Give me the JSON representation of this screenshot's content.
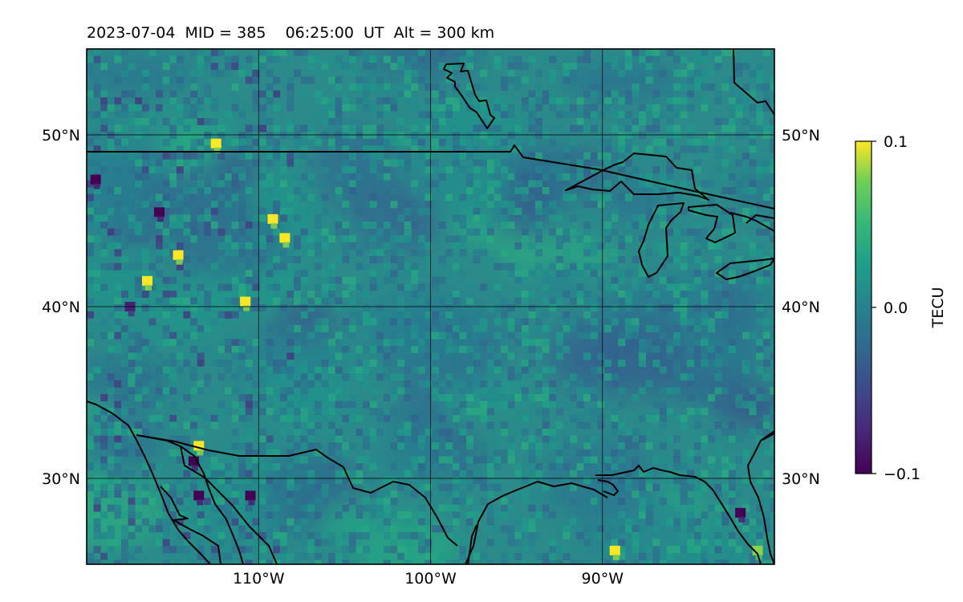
{
  "title": {
    "date": "2023-07-04",
    "mid": "MID = 385",
    "time": "06:25:00  UT",
    "alt": "Alt = 300 km"
  },
  "map": {
    "lon_range": [
      -120,
      -80
    ],
    "lat_range": [
      25,
      55
    ],
    "lon_ticks": [
      {
        "value": -110,
        "label": "110°W"
      },
      {
        "value": -100,
        "label": "100°W"
      },
      {
        "value": -90,
        "label": "90°W"
      }
    ],
    "lat_ticks": [
      {
        "value": 50,
        "label": "50°N"
      },
      {
        "value": 40,
        "label": "40°N"
      },
      {
        "value": 30,
        "label": "30°N"
      }
    ],
    "gridlines": true,
    "coastlines_and_borders": true
  },
  "colorbar": {
    "label": "TECU",
    "colormap": "viridis",
    "min": -0.1,
    "max": 0.1,
    "ticks": [
      {
        "value": 0.1,
        "label": "0.1"
      },
      {
        "value": 0.0,
        "label": "0.0"
      },
      {
        "value": -0.1,
        "label": "−0.1"
      }
    ]
  },
  "chart_data": {
    "type": "heatmap",
    "title": "2023-07-04  MID = 385    06:25:00  UT  Alt = 300 km",
    "x_axis": "longitude",
    "y_axis": "latitude",
    "xlim": [
      -120,
      -80
    ],
    "ylim": [
      25,
      55
    ],
    "value_range": [
      -0.1,
      0.1
    ],
    "units": "TECU",
    "dominant_value": 0.0,
    "notable_regions": [
      {
        "lon": -114.7,
        "lat": 43.0,
        "value": 0.1
      },
      {
        "lon": -116.5,
        "lat": 41.5,
        "value": 0.1
      },
      {
        "lon": -110.8,
        "lat": 40.3,
        "value": 0.1
      },
      {
        "lon": -108.5,
        "lat": 44.0,
        "value": 0.1
      },
      {
        "lon": -109.2,
        "lat": 45.1,
        "value": 0.1
      },
      {
        "lon": -112.5,
        "lat": 49.5,
        "value": 0.1
      },
      {
        "lon": -113.5,
        "lat": 31.9,
        "value": 0.1
      },
      {
        "lon": -89.3,
        "lat": 25.8,
        "value": 0.1
      },
      {
        "lon": -81.0,
        "lat": 25.8,
        "value": 0.08
      },
      {
        "lon": -119.5,
        "lat": 47.4,
        "value": -0.1
      },
      {
        "lon": -115.8,
        "lat": 45.5,
        "value": -0.1
      },
      {
        "lon": -113.5,
        "lat": 29.0,
        "value": -0.1
      },
      {
        "lon": -113.8,
        "lat": 31.0,
        "value": -0.1
      },
      {
        "lon": -110.5,
        "lat": 29.0,
        "value": -0.1
      },
      {
        "lon": -117.5,
        "lat": 40.0,
        "value": -0.08
      },
      {
        "lon": -82.0,
        "lat": 28.0,
        "value": -0.1
      }
    ]
  }
}
